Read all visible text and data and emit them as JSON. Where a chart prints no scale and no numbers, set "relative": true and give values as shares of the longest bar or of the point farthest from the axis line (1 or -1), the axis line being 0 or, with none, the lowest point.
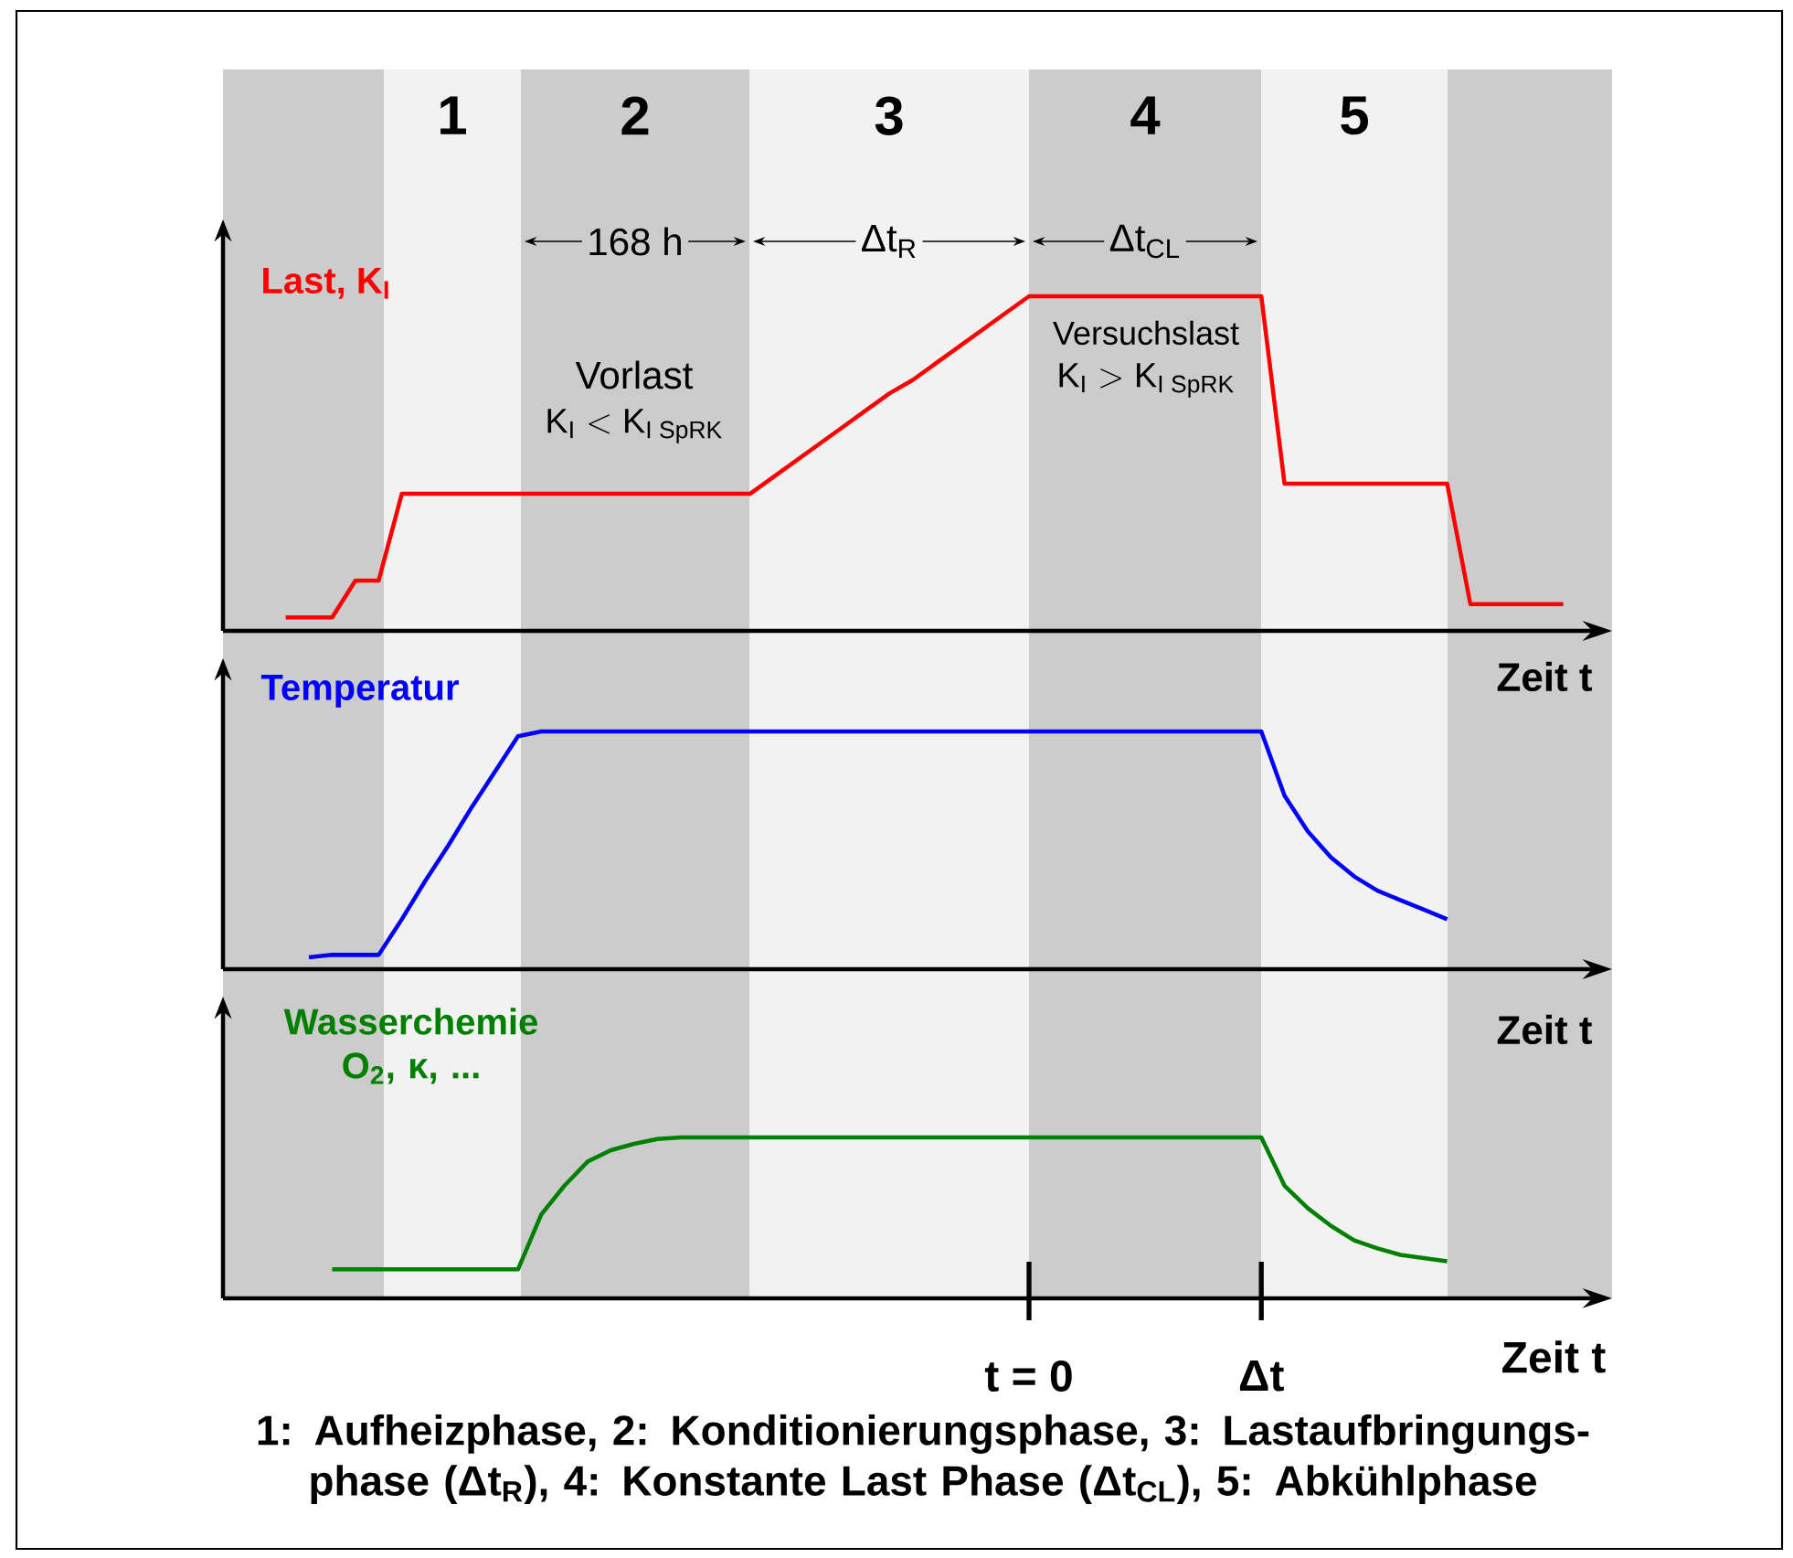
{
  "chart_data": [
    {
      "type": "line",
      "relative": true,
      "xlabel": "Zeit t",
      "categories": [
        null,
        null,
        null,
        null,
        null,
        null,
        null,
        null,
        null,
        null,
        null,
        null,
        null,
        null,
        null,
        null,
        null,
        null,
        null,
        null,
        null,
        null,
        null,
        null,
        null,
        null,
        null,
        null,
        null,
        null,
        null,
        null,
        null,
        null,
        null,
        null,
        null,
        null,
        null,
        null,
        null,
        null,
        null,
        null,
        null,
        null,
        null,
        null,
        null,
        null,
        null,
        null,
        null,
        null,
        null,
        null,
        null,
        null,
        null
      ],
      "series": [
        {
          "name": "Last, K$_{I}$",
          "color": "#ff0000",
          "values": [
            null,
            null,
            0.04,
            0.04,
            0.04,
            0.15,
            0.15,
            0.41,
            0.41,
            0.41,
            0.41,
            0.41,
            0.41,
            0.41,
            0.41,
            0.41,
            0.41,
            0.41,
            0.41,
            0.41,
            0.41,
            0.41,
            0.41,
            0.46,
            0.51,
            0.56,
            0.61,
            0.66,
            0.71,
            0.75,
            0.8,
            0.85,
            0.9,
            0.95,
            1,
            1,
            1,
            1,
            1,
            1,
            1,
            1,
            1,
            1,
            1,
            0.44,
            0.44,
            0.44,
            0.44,
            0.44,
            0.44,
            0.44,
            0.44,
            0.08,
            0.08,
            0.08,
            0.08,
            0.08,
            null
          ]
        }
      ],
      "annotations": [
        "168 h",
        "Δt$_{R}$",
        "Δt$_{CL}$",
        "Vorlast",
        "\\mathrm{K}_{\\mathrm{I}} < \\mathrm{K}_{\\mathrm{I\\;SpRK}}",
        "Versuchslast",
        "\\mathrm{K}_{\\mathrm{I}} > \\mathrm{K}_{\\mathrm{I\\;SpRK}}",
        "1",
        "2",
        "3",
        "4",
        "5"
      ]
    },
    {
      "type": "line",
      "relative": true,
      "xlabel": "Zeit t",
      "categories": [
        null,
        null,
        null,
        null,
        null,
        null,
        null,
        null,
        null,
        null,
        null,
        null,
        null,
        null,
        null,
        null,
        null,
        null,
        null,
        null,
        null,
        null,
        null,
        null,
        null,
        null,
        null,
        null,
        null,
        null,
        null,
        null,
        null,
        null,
        null,
        null,
        null,
        null,
        null,
        null,
        null,
        null,
        null,
        null,
        null,
        null,
        null,
        null,
        null,
        null,
        null,
        null,
        null,
        null,
        null,
        null,
        null,
        null,
        null
      ],
      "series": [
        {
          "name": "Temperatur",
          "color": "#0000ff",
          "values": [
            null,
            null,
            null,
            0.05,
            0.06,
            0.06,
            0.06,
            0.21,
            0.37,
            0.52,
            0.68,
            0.83,
            0.98,
            1,
            1,
            1,
            1,
            1,
            1,
            1,
            1,
            1,
            1,
            1,
            1,
            1,
            1,
            1,
            1,
            1,
            1,
            1,
            1,
            1,
            1,
            1,
            1,
            1,
            1,
            1,
            1,
            1,
            1,
            1,
            1,
            0.73,
            0.58,
            0.47,
            0.39,
            0.33,
            0.29,
            0.25,
            0.21,
            null,
            null,
            null,
            null,
            null,
            null
          ]
        }
      ]
    },
    {
      "type": "line",
      "relative": true,
      "xlabel": "Zeit t",
      "categories": [
        null,
        null,
        null,
        null,
        null,
        null,
        null,
        null,
        null,
        null,
        null,
        null,
        null,
        null,
        null,
        null,
        null,
        null,
        null,
        null,
        null,
        null,
        null,
        null,
        null,
        null,
        null,
        null,
        null,
        null,
        null,
        null,
        null,
        null,
        "t = 0",
        null,
        null,
        null,
        null,
        null,
        null,
        null,
        null,
        null,
        "Δt",
        null,
        null,
        null,
        null,
        null,
        null,
        null,
        null,
        null,
        null,
        null,
        null,
        null,
        null
      ],
      "series": [
        {
          "name": "Wasserchemie O$_{2}$, κ, ...",
          "color": "#008000",
          "values": [
            null,
            null,
            null,
            null,
            0.18,
            0.18,
            0.18,
            0.18,
            0.18,
            0.18,
            0.18,
            0.18,
            0.18,
            0.52,
            0.7,
            0.85,
            0.92,
            0.96,
            0.99,
            1,
            1,
            1,
            1,
            1,
            1,
            1,
            1,
            1,
            1,
            1,
            1,
            1,
            1,
            1,
            1,
            1,
            1,
            1,
            1,
            1,
            1,
            1,
            1,
            1,
            1,
            0.7,
            0.56,
            0.45,
            0.36,
            0.31,
            0.27,
            0.25,
            0.23,
            null,
            null,
            null,
            null,
            null,
            null
          ]
        }
      ],
      "annotations": [
        "1: Aufheizphase, 2: Konditionierungsphase, 3: Lastaufbringungs-phase (Δt$_{R}$), 4: Konstante Last  Phase (Δt$_{CL}$), 5: Abkühlphase"
      ]
    }
  ]
}
